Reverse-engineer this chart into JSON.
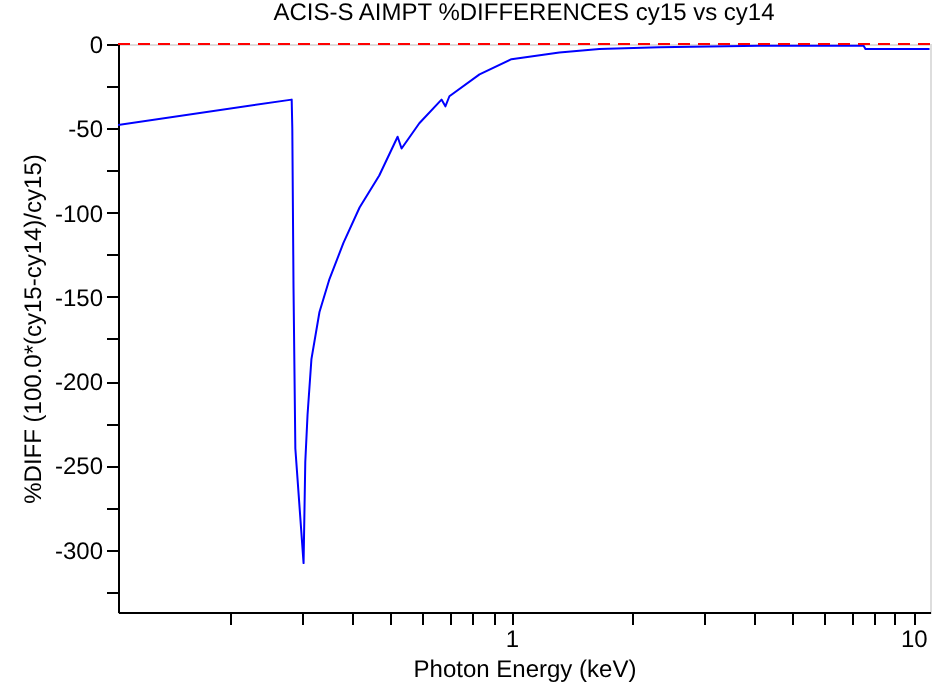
{
  "chart_data": {
    "type": "line",
    "title": "ACIS-S AIMPT %DIFFERENCES cy15 vs cy14",
    "xlabel": "Photon Energy (keV)",
    "ylabel": "%DIFF (100.0*(cy15-cy14)/cy15)",
    "log": "x",
    "xlim": [
      0.105,
      11
    ],
    "ylim": [
      -337,
      0
    ],
    "xticks": [
      {
        "value": 0.2,
        "label": null
      },
      {
        "value": 0.3,
        "label": null
      },
      {
        "value": 0.4,
        "label": null
      },
      {
        "value": 0.5,
        "label": null
      },
      {
        "value": 0.6,
        "label": null
      },
      {
        "value": 0.7,
        "label": null
      },
      {
        "value": 0.8,
        "label": null
      },
      {
        "value": 0.9,
        "label": null
      },
      1,
      {
        "value": 2,
        "label": null
      },
      {
        "value": 3,
        "label": null
      },
      {
        "value": 4,
        "label": null
      },
      {
        "value": 5,
        "label": null
      },
      {
        "value": 6,
        "label": null
      },
      {
        "value": 7,
        "label": null
      },
      {
        "value": 8,
        "label": null
      },
      {
        "value": 9,
        "label": null
      },
      10
    ],
    "yticks": [
      0,
      {
        "value": -25,
        "label": null
      },
      -50,
      {
        "value": -75,
        "label": null
      },
      -100,
      {
        "value": -125,
        "label": null
      },
      -150,
      {
        "value": -175,
        "label": null
      },
      -200,
      {
        "value": -225,
        "label": null
      },
      -250,
      {
        "value": -275,
        "label": null
      },
      -300,
      {
        "value": -325,
        "label": null
      }
    ],
    "ref_lines": [
      {
        "axis": "y",
        "value": 0,
        "color": "#ff0000",
        "line_style": "dashed"
      }
    ],
    "series": [
      {
        "color": "#0000ff",
        "x": [
          0.105,
          0.284,
          0.285,
          0.287,
          0.29,
          0.295,
          0.297,
          0.304,
          0.307,
          0.311,
          0.318,
          0.333,
          0.352,
          0.382,
          0.419,
          0.469,
          0.521,
          0.533,
          0.59,
          0.67,
          0.685,
          0.701,
          0.833,
          1.0,
          1.316,
          1.655,
          2.33,
          4.14,
          7.52,
          7.6,
          10.97
        ],
        "values": [
          -48,
          -33,
          -50,
          -145,
          -240,
          null,
          null,
          -308,
          -248,
          -220,
          -187,
          -159,
          -140,
          -118,
          -97,
          -78,
          -55,
          -62,
          -47,
          -33,
          -37,
          -31,
          -18,
          -9,
          -5,
          -3,
          -2,
          -1,
          -1,
          -3,
          -3
        ]
      }
    ]
  }
}
